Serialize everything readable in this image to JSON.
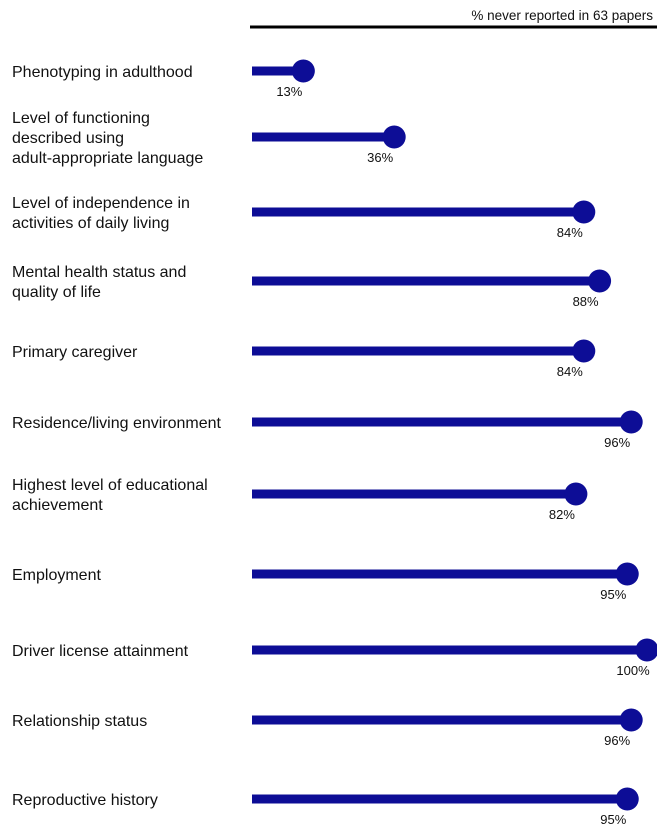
{
  "chart_data": {
    "type": "lollipop",
    "header": "% never reported in 63 papers",
    "xlim": [
      0,
      100
    ],
    "color": "#0d0d96",
    "categories": [
      "Phenotyping in adulthood",
      "Level of functioning described using adult-appropriate language",
      "Level of independence in activities of daily living",
      "Mental health status and quality of life",
      "Primary caregiver",
      "Residence/living environment",
      "Highest level of educational achievement",
      "Employment",
      "Driver license attainment",
      "Relationship status",
      "Reproductive history"
    ],
    "category_lines": [
      [
        "Phenotyping in adulthood"
      ],
      [
        "Level of functioning",
        "described using",
        "adult-appropriate language"
      ],
      [
        "Level of independence in",
        "activities of daily living"
      ],
      [
        "Mental health status and",
        "quality of life"
      ],
      [
        "Primary caregiver"
      ],
      [
        "Residence/living environment"
      ],
      [
        "Highest level of educational",
        "achievement"
      ],
      [
        "Employment"
      ],
      [
        "Driver license attainment"
      ],
      [
        "Relationship status"
      ],
      [
        "Reproductive history"
      ]
    ],
    "values": [
      13,
      36,
      84,
      88,
      84,
      96,
      82,
      95,
      100,
      96,
      95
    ],
    "value_labels": [
      "13%",
      "36%",
      "84%",
      "88%",
      "84%",
      "96%",
      "82%",
      "95%",
      "100%",
      "96%",
      "95%"
    ]
  }
}
